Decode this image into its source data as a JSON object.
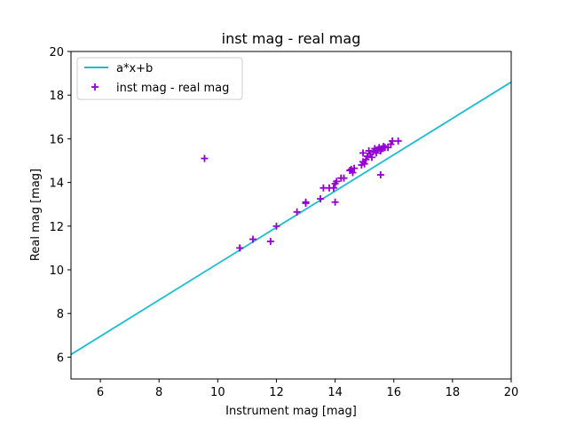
{
  "chart_data": {
    "type": "scatter",
    "title": "inst mag - real mag",
    "xlabel": "Instrument mag [mag]",
    "ylabel": "Real mag [mag]",
    "xlim": [
      5,
      20
    ],
    "ylim": [
      5,
      20
    ],
    "xticks": [
      6,
      8,
      10,
      12,
      14,
      16,
      18,
      20
    ],
    "yticks": [
      6,
      8,
      10,
      12,
      14,
      16,
      18,
      20
    ],
    "grid": false,
    "legend_position": "top-left",
    "series": [
      {
        "name": "a*x+b",
        "type": "line",
        "color": "#17becf",
        "x": [
          5,
          20
        ],
        "y": [
          6.12,
          18.6
        ]
      },
      {
        "name": "inst mag - real mag",
        "type": "scatter",
        "marker": "plus",
        "color": "#9400d3",
        "points": [
          [
            9.55,
            15.1
          ],
          [
            10.75,
            11.0
          ],
          [
            11.2,
            11.4
          ],
          [
            11.8,
            11.3
          ],
          [
            12.0,
            12.0
          ],
          [
            12.7,
            12.65
          ],
          [
            13.0,
            13.05
          ],
          [
            13.0,
            13.1
          ],
          [
            13.5,
            13.25
          ],
          [
            13.6,
            13.75
          ],
          [
            13.8,
            13.75
          ],
          [
            13.95,
            13.75
          ],
          [
            14.0,
            13.1
          ],
          [
            14.0,
            13.95
          ],
          [
            14.05,
            14.05
          ],
          [
            14.2,
            14.2
          ],
          [
            14.3,
            14.2
          ],
          [
            14.5,
            14.55
          ],
          [
            14.6,
            14.45
          ],
          [
            14.65,
            14.65
          ],
          [
            14.55,
            14.6
          ],
          [
            14.9,
            14.8
          ],
          [
            14.95,
            14.95
          ],
          [
            14.95,
            15.35
          ],
          [
            15.0,
            14.85
          ],
          [
            15.05,
            15.05
          ],
          [
            15.1,
            15.2
          ],
          [
            15.15,
            15.45
          ],
          [
            15.2,
            15.3
          ],
          [
            15.25,
            15.15
          ],
          [
            15.3,
            15.4
          ],
          [
            15.35,
            15.55
          ],
          [
            15.4,
            15.35
          ],
          [
            15.45,
            15.5
          ],
          [
            15.5,
            15.6
          ],
          [
            15.55,
            15.45
          ],
          [
            15.6,
            15.55
          ],
          [
            15.65,
            15.65
          ],
          [
            15.7,
            15.6
          ],
          [
            15.8,
            15.6
          ],
          [
            15.9,
            15.75
          ],
          [
            15.95,
            15.9
          ],
          [
            16.15,
            15.9
          ],
          [
            15.55,
            14.35
          ]
        ]
      }
    ]
  }
}
